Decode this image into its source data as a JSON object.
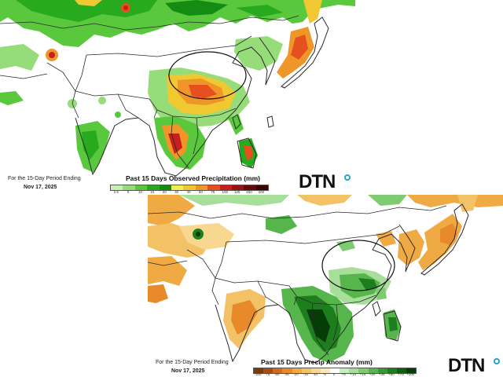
{
  "top_panel": {
    "footer_line1": "For the 15-Day Period Ending",
    "footer_date": "Nov 17, 2025",
    "legend_title": "Past 15 Days Observed Precipitation (mm)",
    "legend_ticks": [
      "2.5",
      "5",
      "10",
      "15",
      "20",
      "30",
      "40",
      "50",
      "75",
      "100",
      "125",
      "150",
      "200"
    ],
    "legend_colors": [
      "#c8f0b4",
      "#96dc78",
      "#5ac83c",
      "#28aa1e",
      "#148c14",
      "#f0f050",
      "#f0c832",
      "#f09628",
      "#e6501e",
      "#c81e1e",
      "#961414",
      "#640a0a",
      "#3c0505"
    ],
    "logo_text": "DTN"
  },
  "bottom_panel": {
    "footer_line1": "For the 15-Day Period Ending",
    "footer_date": "Nov 17, 2025",
    "legend_title": "Past 15 Days Precip Anomaly (mm)",
    "legend_ticks": [
      "-100",
      "-75",
      "-50",
      "-35",
      "-20",
      "-15",
      "-10",
      "-5",
      "0",
      "+5",
      "+10",
      "+15",
      "+20",
      "+35",
      "+50",
      "+75",
      "+100"
    ],
    "legend_colors": [
      "#7a3a0a",
      "#a85014",
      "#d06a1e",
      "#e88a2a",
      "#f0aa44",
      "#f4c266",
      "#f8d890",
      "#fbe8b8",
      "#ffffff",
      "#c8ecc0",
      "#a6de9a",
      "#7ecb72",
      "#56b64c",
      "#369a30",
      "#1e7e1e",
      "#0e5e12",
      "#063c08"
    ],
    "logo_text": "DTN"
  },
  "colors": {
    "land": "#ffffff",
    "ocean": "#ffffff",
    "border": "#2a2a2a",
    "circle": "#111111",
    "logo_accent": "#2a9fd6"
  }
}
